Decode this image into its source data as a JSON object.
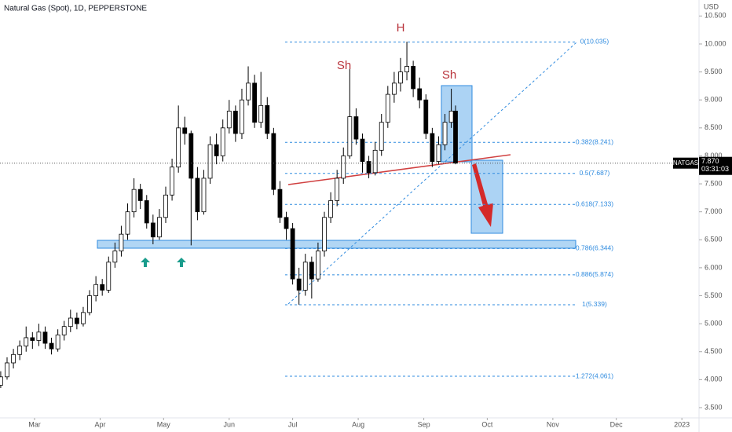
{
  "chart_data": {
    "type": "candlestick",
    "title": "Natural Gas (Spot), 1D, PEPPERSTONE",
    "currency": "USD",
    "up_color": "#ffffff",
    "down_color": "#000000",
    "xlim": [
      42.66,
      373.1
    ],
    "xticks": [
      {
        "value": 59,
        "label": "Mar"
      },
      {
        "value": 90,
        "label": "Apr"
      },
      {
        "value": 120,
        "label": "May"
      },
      {
        "value": 151,
        "label": "Jun"
      },
      {
        "value": 181,
        "label": "Jul"
      },
      {
        "value": 212,
        "label": "Aug"
      },
      {
        "value": 243,
        "label": "Sep"
      },
      {
        "value": 273,
        "label": "Oct"
      },
      {
        "value": 304,
        "label": "Nov"
      },
      {
        "value": 334,
        "label": "Dec"
      },
      {
        "value": 365,
        "label": "2023"
      }
    ],
    "ylim": [
      3.317,
      10.786
    ],
    "yticks": [
      {
        "value": 3.5,
        "label": "3.500"
      },
      {
        "value": 4,
        "label": "4.000"
      },
      {
        "value": 4.5,
        "label": "4.500"
      },
      {
        "value": 5,
        "label": "5.000"
      },
      {
        "value": 5.5,
        "label": "5.500"
      },
      {
        "value": 6,
        "label": "6.000"
      },
      {
        "value": 6.5,
        "label": "6.500"
      },
      {
        "value": 7,
        "label": "7.000"
      },
      {
        "value": 7.5,
        "label": "7.500"
      },
      {
        "value": 8,
        "label": "8.000"
      },
      {
        "value": 8.5,
        "label": "8.500"
      },
      {
        "value": 9,
        "label": "9.000"
      },
      {
        "value": 9.5,
        "label": "9.500"
      },
      {
        "value": 10,
        "label": "10.000"
      },
      {
        "value": 10.5,
        "label": "10.500"
      }
    ],
    "fib_levels": [
      {
        "value": 10.035,
        "label": "0(10.035)"
      },
      {
        "value": 8.241,
        "label": "0.382(8.241)"
      },
      {
        "value": 7.687,
        "label": "0.5(7.687)"
      },
      {
        "value": 7.133,
        "label": "0.618(7.133)"
      },
      {
        "value": 6.344,
        "label": "0.786(6.344)"
      },
      {
        "value": 5.874,
        "label": "0.886(5.874)"
      },
      {
        "value": 5.339,
        "label": "1(5.339)"
      },
      {
        "value": 4.061,
        "label": "1.272(4.061)"
      }
    ],
    "annotations": [
      "Sh",
      "H",
      "Sh"
    ],
    "price_tag": {
      "symbol": "NATGAS",
      "price": "7.870",
      "countdown": "03:31:03"
    },
    "candles": [
      {
        "x": 43,
        "open": 3.9,
        "high": 4.15,
        "low": 3.85,
        "close": 4.05
      },
      {
        "x": 46,
        "open": 4.05,
        "high": 4.4,
        "low": 4.0,
        "close": 4.3
      },
      {
        "x": 49,
        "open": 4.3,
        "high": 4.55,
        "low": 4.2,
        "close": 4.45
      },
      {
        "x": 52,
        "open": 4.45,
        "high": 4.7,
        "low": 4.35,
        "close": 4.6
      },
      {
        "x": 55,
        "open": 4.6,
        "high": 4.95,
        "low": 4.5,
        "close": 4.75
      },
      {
        "x": 58,
        "open": 4.75,
        "high": 4.85,
        "low": 4.55,
        "close": 4.7
      },
      {
        "x": 61,
        "open": 4.7,
        "high": 5.0,
        "low": 4.6,
        "close": 4.85
      },
      {
        "x": 64,
        "open": 4.85,
        "high": 4.95,
        "low": 4.55,
        "close": 4.65
      },
      {
        "x": 67,
        "open": 4.65,
        "high": 4.75,
        "low": 4.45,
        "close": 4.55
      },
      {
        "x": 70,
        "open": 4.55,
        "high": 4.9,
        "low": 4.5,
        "close": 4.8
      },
      {
        "x": 73,
        "open": 4.8,
        "high": 5.05,
        "low": 4.7,
        "close": 4.95
      },
      {
        "x": 76,
        "open": 4.95,
        "high": 5.25,
        "low": 4.85,
        "close": 5.1
      },
      {
        "x": 79,
        "open": 5.1,
        "high": 5.2,
        "low": 4.9,
        "close": 5.0
      },
      {
        "x": 82,
        "open": 5.0,
        "high": 5.3,
        "low": 4.95,
        "close": 5.2
      },
      {
        "x": 85,
        "open": 5.2,
        "high": 5.6,
        "low": 5.15,
        "close": 5.5
      },
      {
        "x": 88,
        "open": 5.5,
        "high": 5.85,
        "low": 5.4,
        "close": 5.7
      },
      {
        "x": 91,
        "open": 5.7,
        "high": 5.8,
        "low": 5.5,
        "close": 5.6
      },
      {
        "x": 94,
        "open": 5.6,
        "high": 6.2,
        "low": 5.55,
        "close": 6.1
      },
      {
        "x": 97,
        "open": 6.1,
        "high": 6.45,
        "low": 6.0,
        "close": 6.3
      },
      {
        "x": 100,
        "open": 6.3,
        "high": 6.75,
        "low": 6.2,
        "close": 6.6
      },
      {
        "x": 103,
        "open": 6.6,
        "high": 7.15,
        "low": 6.5,
        "close": 7.0
      },
      {
        "x": 106,
        "open": 7.0,
        "high": 7.6,
        "low": 6.9,
        "close": 7.4
      },
      {
        "x": 109,
        "open": 7.4,
        "high": 7.5,
        "low": 7.05,
        "close": 7.2
      },
      {
        "x": 112,
        "open": 7.2,
        "high": 7.3,
        "low": 6.7,
        "close": 6.8
      },
      {
        "x": 115,
        "open": 6.8,
        "high": 6.95,
        "low": 6.42,
        "close": 6.55
      },
      {
        "x": 118,
        "open": 6.55,
        "high": 7.05,
        "low": 6.5,
        "close": 6.9
      },
      {
        "x": 121,
        "open": 6.9,
        "high": 7.45,
        "low": 6.8,
        "close": 7.3
      },
      {
        "x": 124,
        "open": 7.3,
        "high": 7.95,
        "low": 7.2,
        "close": 7.8
      },
      {
        "x": 127,
        "open": 7.8,
        "high": 8.9,
        "low": 7.7,
        "close": 8.5
      },
      {
        "x": 130,
        "open": 8.5,
        "high": 8.7,
        "low": 8.2,
        "close": 8.4
      },
      {
        "x": 133,
        "open": 8.4,
        "high": 8.45,
        "low": 6.4,
        "close": 7.6
      },
      {
        "x": 136,
        "open": 7.6,
        "high": 7.8,
        "low": 6.85,
        "close": 7.0
      },
      {
        "x": 139,
        "open": 7.0,
        "high": 7.75,
        "low": 6.95,
        "close": 7.6
      },
      {
        "x": 142,
        "open": 7.6,
        "high": 8.35,
        "low": 7.5,
        "close": 8.2
      },
      {
        "x": 145,
        "open": 8.2,
        "high": 8.4,
        "low": 7.85,
        "close": 8.0
      },
      {
        "x": 148,
        "open": 8.0,
        "high": 8.65,
        "low": 7.9,
        "close": 8.5
      },
      {
        "x": 151,
        "open": 8.5,
        "high": 9.0,
        "low": 8.4,
        "close": 8.8
      },
      {
        "x": 154,
        "open": 8.8,
        "high": 8.9,
        "low": 8.25,
        "close": 8.4
      },
      {
        "x": 157,
        "open": 8.4,
        "high": 9.2,
        "low": 8.3,
        "close": 9.0
      },
      {
        "x": 160,
        "open": 9.0,
        "high": 9.6,
        "low": 8.9,
        "close": 9.3
      },
      {
        "x": 163,
        "open": 9.3,
        "high": 9.45,
        "low": 8.5,
        "close": 8.6
      },
      {
        "x": 166,
        "open": 8.6,
        "high": 9.5,
        "low": 8.5,
        "close": 8.9
      },
      {
        "x": 169,
        "open": 8.9,
        "high": 9.05,
        "low": 8.3,
        "close": 8.4
      },
      {
        "x": 172,
        "open": 8.4,
        "high": 8.5,
        "low": 7.3,
        "close": 7.4
      },
      {
        "x": 175,
        "open": 7.4,
        "high": 7.55,
        "low": 6.8,
        "close": 6.9
      },
      {
        "x": 178,
        "open": 6.9,
        "high": 7.0,
        "low": 6.5,
        "close": 6.7
      },
      {
        "x": 181,
        "open": 6.7,
        "high": 6.8,
        "low": 5.7,
        "close": 5.8
      },
      {
        "x": 184,
        "open": 5.8,
        "high": 6.0,
        "low": 5.34,
        "close": 5.6
      },
      {
        "x": 187,
        "open": 5.6,
        "high": 6.25,
        "low": 5.5,
        "close": 6.1
      },
      {
        "x": 190,
        "open": 6.1,
        "high": 6.2,
        "low": 5.45,
        "close": 5.8
      },
      {
        "x": 193,
        "open": 5.8,
        "high": 6.45,
        "low": 5.75,
        "close": 6.3
      },
      {
        "x": 196,
        "open": 6.3,
        "high": 7.0,
        "low": 6.2,
        "close": 6.9
      },
      {
        "x": 199,
        "open": 6.9,
        "high": 7.35,
        "low": 6.8,
        "close": 7.2
      },
      {
        "x": 202,
        "open": 7.2,
        "high": 7.75,
        "low": 7.1,
        "close": 7.6
      },
      {
        "x": 205,
        "open": 7.6,
        "high": 8.15,
        "low": 7.5,
        "close": 8.0
      },
      {
        "x": 208,
        "open": 8.0,
        "high": 9.55,
        "low": 7.95,
        "close": 8.7
      },
      {
        "x": 211,
        "open": 8.7,
        "high": 8.85,
        "low": 8.2,
        "close": 8.3
      },
      {
        "x": 214,
        "open": 8.3,
        "high": 8.4,
        "low": 7.7,
        "close": 7.9
      },
      {
        "x": 217,
        "open": 7.9,
        "high": 8.0,
        "low": 7.6,
        "close": 7.7
      },
      {
        "x": 220,
        "open": 7.7,
        "high": 8.25,
        "low": 7.65,
        "close": 8.1
      },
      {
        "x": 223,
        "open": 8.1,
        "high": 8.75,
        "low": 8.0,
        "close": 8.6
      },
      {
        "x": 226,
        "open": 8.6,
        "high": 9.25,
        "low": 8.5,
        "close": 9.1
      },
      {
        "x": 229,
        "open": 9.1,
        "high": 9.5,
        "low": 8.95,
        "close": 9.3
      },
      {
        "x": 232,
        "open": 9.3,
        "high": 9.75,
        "low": 9.15,
        "close": 9.5
      },
      {
        "x": 235,
        "open": 9.5,
        "high": 10.04,
        "low": 9.35,
        "close": 9.6
      },
      {
        "x": 238,
        "open": 9.6,
        "high": 9.7,
        "low": 9.05,
        "close": 9.2
      },
      {
        "x": 241,
        "open": 9.2,
        "high": 9.4,
        "low": 8.85,
        "close": 9.0
      },
      {
        "x": 244,
        "open": 9.0,
        "high": 9.1,
        "low": 8.3,
        "close": 8.4
      },
      {
        "x": 247,
        "open": 8.4,
        "high": 8.5,
        "low": 7.8,
        "close": 7.9
      },
      {
        "x": 250,
        "open": 7.9,
        "high": 8.35,
        "low": 7.85,
        "close": 8.2
      },
      {
        "x": 253,
        "open": 8.2,
        "high": 8.75,
        "low": 8.1,
        "close": 8.6
      },
      {
        "x": 256,
        "open": 8.6,
        "high": 9.2,
        "low": 8.5,
        "close": 8.8
      },
      {
        "x": 258,
        "open": 8.8,
        "high": 8.9,
        "low": 7.85,
        "close": 7.87
      }
    ]
  }
}
